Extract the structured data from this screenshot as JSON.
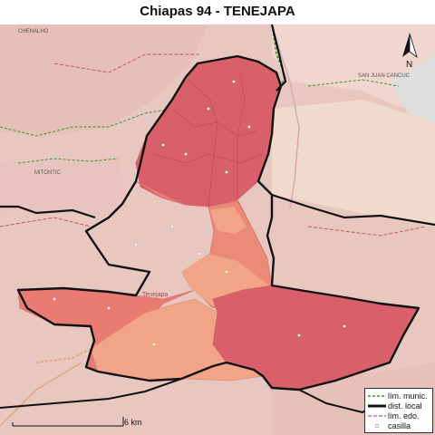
{
  "title": "Chiapas 94 - TENEJAPA",
  "place_labels": {
    "chenalho": "CHENALHO",
    "mitontic": "MITONTIC",
    "san_juan_cancuc": "SAN JUAN CANCUC",
    "tenejapa": "Tenejapa"
  },
  "north_arrow": {
    "label": "N",
    "icon": "north-arrow-icon"
  },
  "scale_bar": {
    "label": "6 km"
  },
  "legend": {
    "items": [
      {
        "label": "lím. munic.",
        "symbol": "green-dashed-line"
      },
      {
        "label": "dist. local",
        "symbol": "thick-black-line"
      },
      {
        "label": "lím. edo.",
        "symbol": "red-dashed-line"
      },
      {
        "label": "casilla",
        "symbol": "small-circle"
      }
    ]
  },
  "colors": {
    "background": "#e8c7c0",
    "outside_light": "#f0d6cf",
    "municipio_dark": "#d9606a",
    "municipio_mid": "#ea7b73",
    "municipio_light": "#f1a486",
    "municipio_border": "#000000",
    "municipal_limit": "#2e9a2e",
    "state_limit": "#c8556a",
    "gray_area": "#dedede",
    "olive_area": "#e6cf98"
  }
}
